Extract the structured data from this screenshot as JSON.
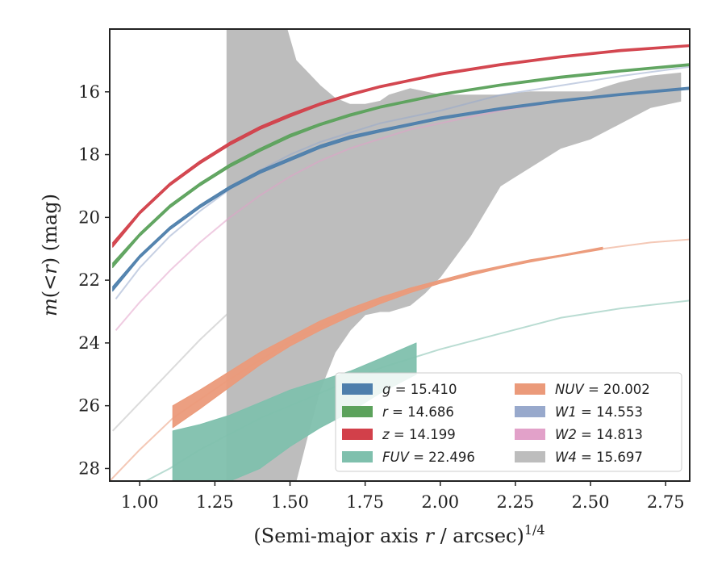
{
  "chart_data": {
    "type": "line",
    "xlabel": "(Semi-major axis r / arcsec)^{1/4}",
    "xlabel_parts": {
      "main": "(Semi-major axis ",
      "var": "r",
      "rest": " / arcsec)",
      "sup": "1/4"
    },
    "ylabel": "m(<r) (mag)",
    "ylabel_parts": {
      "var": "m",
      "paren_open": "(<",
      "r": "r",
      "paren_close": ")",
      "unit": " (mag)"
    },
    "xlim": [
      0.9,
      2.83
    ],
    "ylim": [
      28.4,
      14.0
    ],
    "y_inverted": true,
    "xticks": [
      1.0,
      1.25,
      1.5,
      1.75,
      2.0,
      2.25,
      2.5,
      2.75
    ],
    "xtick_labels": [
      "1.00",
      "1.25",
      "1.50",
      "1.75",
      "2.00",
      "2.25",
      "2.50",
      "2.75"
    ],
    "yticks": [
      16,
      18,
      20,
      22,
      24,
      26,
      28
    ],
    "ytick_labels": [
      "16",
      "18",
      "20",
      "22",
      "24",
      "26",
      "28"
    ],
    "grid": false,
    "legend_position": "lower-right",
    "legend_columns": 2,
    "legend": [
      {
        "label": "g = 15.410",
        "var": "g",
        "value": "15.410",
        "color": "#4e7fac"
      },
      {
        "label": "r = 14.686",
        "var": "r",
        "value": "14.686",
        "color": "#5ca25c"
      },
      {
        "label": "z = 14.199",
        "var": "z",
        "value": "14.199",
        "color": "#d2404a"
      },
      {
        "label": "FUV = 22.496",
        "var": "FUV",
        "value": "22.496",
        "color": "#7fc0ad"
      },
      {
        "label": "NUV = 20.002",
        "var": "NUV",
        "value": "20.002",
        "color": "#eb9a7a"
      },
      {
        "label": "W1 = 14.553",
        "var": "W1",
        "value": "14.553",
        "color": "#98a9cc"
      },
      {
        "label": "W2 = 14.813",
        "var": "W2",
        "value": "14.813",
        "color": "#e2a1c9"
      },
      {
        "label": "W4 = 15.697",
        "var": "W4",
        "value": "15.697",
        "color": "#bdbdbd"
      }
    ],
    "series": [
      {
        "name": "W4",
        "color": "#bdbdbd",
        "band_x": [
          1.29,
          1.29,
          1.49,
          1.52,
          1.56,
          1.6,
          1.65,
          1.7,
          1.75,
          1.8,
          1.83,
          1.9,
          1.95,
          2.0,
          2.1,
          2.2,
          2.3,
          2.4,
          2.5,
          2.6,
          2.7,
          2.8
        ],
        "band_lower": [
          14.0,
          14.0,
          14.0,
          15.0,
          15.4,
          15.8,
          16.2,
          16.4,
          16.4,
          16.3,
          16.1,
          15.9,
          16.0,
          16.1,
          16.1,
          16.1,
          16.0,
          16.0,
          16.0,
          15.7,
          15.5,
          15.4
        ],
        "band_upper": [
          28.4,
          28.4,
          28.4,
          28.4,
          26.9,
          25.5,
          24.3,
          23.6,
          23.1,
          23.0,
          23.0,
          22.8,
          22.4,
          21.9,
          20.6,
          19.0,
          18.4,
          17.8,
          17.5,
          17.0,
          16.5,
          16.3
        ],
        "line_x": [
          0.91,
          1.0,
          1.1,
          1.2,
          1.3,
          1.4,
          1.5,
          1.6,
          1.7,
          1.8,
          1.9,
          2.0,
          2.2,
          2.4,
          2.6,
          2.8
        ],
        "line_y": [
          26.8,
          25.9,
          24.9,
          23.9,
          23.0,
          22.0,
          21.1,
          20.3,
          19.6,
          19.0,
          18.4,
          17.9,
          17.2,
          16.7,
          16.4,
          16.2
        ]
      },
      {
        "name": "NUV",
        "color": "#eb9a7a",
        "band_x": [
          1.11,
          1.2,
          1.3,
          1.4,
          1.5,
          1.6,
          1.7,
          1.8,
          1.9,
          2.0,
          2.1,
          2.2,
          2.3,
          2.4,
          2.54
        ],
        "band_lower": [
          26.0,
          25.5,
          24.9,
          24.3,
          23.8,
          23.3,
          22.9,
          22.55,
          22.25,
          22.0,
          21.75,
          21.55,
          21.35,
          21.2,
          20.95
        ],
        "band_upper": [
          26.7,
          26.1,
          25.4,
          24.7,
          24.1,
          23.6,
          23.15,
          22.75,
          22.4,
          22.1,
          21.85,
          21.62,
          21.42,
          21.25,
          21.02
        ],
        "line_x": [
          0.9,
          1.0,
          1.11,
          1.2,
          1.3,
          1.5,
          1.7,
          1.9,
          2.1,
          2.3,
          2.54,
          2.7,
          2.83
        ],
        "line_y": [
          28.4,
          27.4,
          26.4,
          25.8,
          25.15,
          23.95,
          23.0,
          22.3,
          21.8,
          21.4,
          21.0,
          20.8,
          20.7
        ]
      },
      {
        "name": "FUV",
        "color": "#7fc0ad",
        "band_x": [
          1.11,
          1.2,
          1.3,
          1.4,
          1.5,
          1.6,
          1.7,
          1.8,
          1.92
        ],
        "band_lower": [
          26.8,
          26.6,
          26.3,
          25.9,
          25.5,
          25.2,
          24.9,
          24.5,
          24.0
        ],
        "band_upper": [
          28.4,
          28.4,
          28.4,
          28.0,
          27.3,
          26.7,
          26.2,
          25.6,
          25.0
        ],
        "line_x": [
          1.02,
          1.1,
          1.2,
          1.3,
          1.4,
          1.5,
          1.6,
          1.7,
          1.8,
          1.9,
          2.0,
          2.2,
          2.4,
          2.6,
          2.83
        ],
        "line_y": [
          28.4,
          28.0,
          27.4,
          26.9,
          26.4,
          26.0,
          25.6,
          25.2,
          24.8,
          24.5,
          24.2,
          23.7,
          23.2,
          22.9,
          22.65
        ]
      },
      {
        "name": "W2",
        "color": "#e2a1c9",
        "band_x": [],
        "band_lower": [],
        "band_upper": [],
        "line_x": [
          0.92,
          1.0,
          1.1,
          1.2,
          1.3,
          1.4,
          1.5,
          1.6,
          1.7,
          1.8,
          1.9,
          2.0,
          2.2,
          2.4,
          2.6,
          2.83
        ],
        "line_y": [
          23.6,
          22.7,
          21.7,
          20.8,
          20.0,
          19.3,
          18.7,
          18.2,
          17.8,
          17.5,
          17.2,
          17.0,
          16.6,
          16.3,
          16.1,
          15.9
        ]
      },
      {
        "name": "W1",
        "color": "#98a9cc",
        "band_x": [],
        "band_lower": [],
        "band_upper": [],
        "line_x": [
          0.92,
          1.0,
          1.1,
          1.2,
          1.3,
          1.4,
          1.5,
          1.6,
          1.7,
          1.8,
          1.9,
          2.0,
          2.2,
          2.4,
          2.6,
          2.83
        ],
        "line_y": [
          22.6,
          21.6,
          20.6,
          19.8,
          19.1,
          18.5,
          18.0,
          17.6,
          17.3,
          17.0,
          16.8,
          16.6,
          16.1,
          15.8,
          15.5,
          15.2
        ]
      },
      {
        "name": "g",
        "color": "#4e7fac",
        "band_x": [
          0.91,
          1.0,
          1.1,
          1.2,
          1.3,
          1.4,
          1.5,
          1.6,
          1.7,
          1.8,
          1.9,
          2.0,
          2.2,
          2.4,
          2.6,
          2.83
        ],
        "band_lower": [
          22.2,
          21.2,
          20.3,
          19.6,
          19.0,
          18.5,
          18.1,
          17.7,
          17.4,
          17.2,
          17.0,
          16.8,
          16.5,
          16.25,
          16.05,
          15.85
        ],
        "band_upper": [
          22.35,
          21.3,
          20.4,
          19.7,
          19.1,
          18.6,
          18.2,
          17.8,
          17.5,
          17.28,
          17.08,
          16.88,
          16.58,
          16.32,
          16.12,
          15.92
        ],
        "line_x": [],
        "line_y": []
      },
      {
        "name": "r",
        "color": "#5ca25c",
        "band_x": [
          0.91,
          1.0,
          1.1,
          1.2,
          1.3,
          1.4,
          1.5,
          1.6,
          1.7,
          1.8,
          1.9,
          2.0,
          2.2,
          2.4,
          2.6,
          2.83
        ],
        "band_lower": [
          21.45,
          20.5,
          19.6,
          18.9,
          18.3,
          17.8,
          17.35,
          17.0,
          16.7,
          16.45,
          16.25,
          16.05,
          15.75,
          15.5,
          15.3,
          15.1
        ],
        "band_upper": [
          21.6,
          20.6,
          19.7,
          19.0,
          18.4,
          17.9,
          17.45,
          17.08,
          16.78,
          16.52,
          16.32,
          16.12,
          15.82,
          15.57,
          15.37,
          15.17
        ],
        "line_x": [],
        "line_y": []
      },
      {
        "name": "z",
        "color": "#d2404a",
        "band_x": [
          0.91,
          1.0,
          1.1,
          1.2,
          1.3,
          1.4,
          1.5,
          1.6,
          1.7,
          1.8,
          1.9,
          2.0,
          2.2,
          2.4,
          2.6,
          2.83
        ],
        "band_lower": [
          20.8,
          19.8,
          18.9,
          18.2,
          17.6,
          17.1,
          16.7,
          16.35,
          16.05,
          15.8,
          15.6,
          15.4,
          15.1,
          14.85,
          14.65,
          14.5
        ],
        "band_upper": [
          20.95,
          19.9,
          19.0,
          18.3,
          17.7,
          17.2,
          16.8,
          16.43,
          16.13,
          15.87,
          15.67,
          15.47,
          15.17,
          14.92,
          14.72,
          14.56
        ],
        "line_x": [],
        "line_y": []
      }
    ]
  }
}
